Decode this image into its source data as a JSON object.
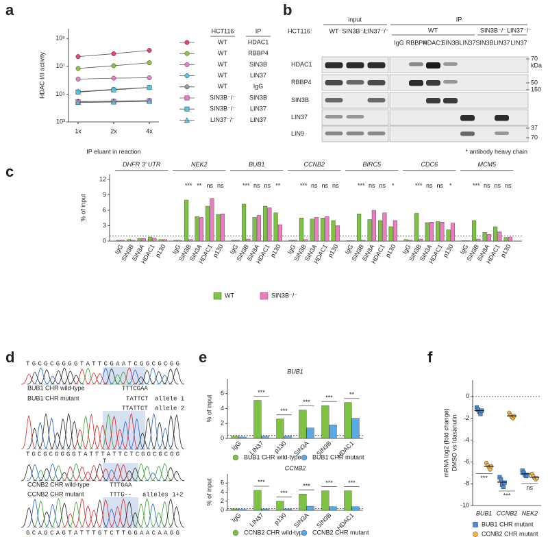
{
  "panel_labels": [
    "a",
    "b",
    "c",
    "d",
    "e",
    "f"
  ],
  "chart_data": [
    {
      "type": "line",
      "y_label": "HDAC I/II activity",
      "x_label": "IP eluant in reaction",
      "categories": [
        "1x",
        "2x",
        "4x"
      ],
      "log_scale": true,
      "ylim": [
        1000,
        5000000000
      ],
      "yticks": [
        {
          "value": 1000,
          "label": "10³"
        },
        {
          "value": 100000,
          "label": "10⁵"
        },
        {
          "value": 10000000,
          "label": "10⁷"
        },
        {
          "value": 1000000000,
          "label": "10⁹"
        }
      ],
      "legend_headers": [
        "HCT116",
        "IP"
      ],
      "series": [
        {
          "name": "WT",
          "ip": "HDAC1",
          "color": "#e8407a",
          "marker": "circle",
          "values": [
            50000000,
            80000000,
            140000000
          ]
        },
        {
          "name": "WT",
          "ip": "RBBP4",
          "color": "#8cc63f",
          "marker": "circle",
          "values": [
            7000000,
            11000000,
            18000000
          ]
        },
        {
          "name": "WT",
          "ip": "SIN3B",
          "color": "#e67fd0",
          "marker": "circle",
          "values": [
            1200000,
            1400000,
            1500000
          ]
        },
        {
          "name": "WT",
          "ip": "LIN37",
          "color": "#4fc3e8",
          "marker": "circle",
          "values": [
            150000,
            220000,
            300000
          ]
        },
        {
          "name": "WT",
          "ip": "IgG",
          "color": "#999999",
          "marker": "circle",
          "values": [
            30000,
            32000,
            35000
          ]
        },
        {
          "name": "SIN3B⁻/⁻",
          "ip": "SIN3B",
          "color": "#e67fd0",
          "marker": "square",
          "values": [
            28000,
            30000,
            33000
          ]
        },
        {
          "name": "SIN3B⁻/⁻",
          "ip": "LIN37",
          "color": "#4fc3e8",
          "marker": "square",
          "values": [
            140000,
            200000,
            300000
          ]
        },
        {
          "name": "LIN37⁻/⁻",
          "ip": "LIN37",
          "color": "#4fc3e8",
          "marker": "triangle",
          "values": [
            25000,
            27000,
            30000
          ]
        }
      ]
    },
    {
      "type": "bar",
      "y_label": "% of input",
      "ylim": [
        0,
        13
      ],
      "yticks": [
        0,
        3,
        6,
        9,
        12
      ],
      "ref_line": 1,
      "series": [
        {
          "name": "WT",
          "color": "#7dc243"
        },
        {
          "name": "SIN3B⁻/⁻",
          "color": "#f07cc0"
        }
      ],
      "groups": [
        {
          "title": "DHFR 3' UTR",
          "categories": [
            "IgG",
            "SIN3B",
            "SIN3A",
            "HDAC1",
            "p130"
          ],
          "values": [
            [
              0.2,
              0.3,
              0.5,
              0.8,
              0.3
            ],
            [
              0.2,
              0.2,
              0.5,
              0.6,
              0.3
            ]
          ]
        },
        {
          "title": "NEK2",
          "categories": [
            "IgG",
            "SIN3B",
            "SIN3A",
            "HDAC1",
            "p130"
          ],
          "values": [
            [
              0.2,
              8.0,
              4.8,
              6.8,
              5.2
            ],
            [
              0.1,
              0.3,
              4.6,
              8.3,
              5.3
            ]
          ],
          "annotations": [
            null,
            "***",
            "**",
            "ns",
            "ns"
          ]
        },
        {
          "title": "BUB1",
          "categories": [
            "IgG",
            "SIN3B",
            "SIN3A",
            "HDAC1",
            "p130"
          ],
          "values": [
            [
              0.2,
              7.2,
              4.6,
              6.8,
              5.5
            ],
            [
              0.2,
              0.4,
              5.0,
              6.5,
              3.2
            ]
          ],
          "annotations": [
            null,
            "***",
            "ns",
            "ns",
            "**"
          ]
        },
        {
          "title": "CCNB2",
          "categories": [
            "IgG",
            "SIN3B",
            "SIN3A",
            "HDAC1",
            "p130"
          ],
          "values": [
            [
              0.2,
              4.5,
              4.3,
              4.5,
              4.0
            ],
            [
              0.2,
              0.3,
              4.6,
              4.8,
              3.0
            ]
          ],
          "annotations": [
            null,
            "***",
            "ns",
            "ns",
            "ns"
          ]
        },
        {
          "title": "BIRC5",
          "categories": [
            "IgG",
            "SIN3B",
            "SIN3A",
            "HDAC1",
            "p130"
          ],
          "values": [
            [
              0.1,
              5.3,
              4.2,
              4.0,
              2.8
            ],
            [
              0.1,
              0.2,
              6.0,
              5.5,
              4.0
            ]
          ],
          "annotations": [
            null,
            "***",
            "ns",
            "ns",
            "*"
          ]
        },
        {
          "title": "CDC6",
          "categories": [
            "IgG",
            "SIN3B",
            "SIN3A",
            "HDAC1",
            "p130"
          ],
          "values": [
            [
              0.3,
              5.4,
              3.6,
              3.8,
              2.2
            ],
            [
              0.2,
              0.4,
              3.7,
              3.7,
              3.5
            ]
          ],
          "annotations": [
            null,
            "***",
            "ns",
            "ns",
            "*"
          ]
        },
        {
          "title": "MCM5",
          "categories": [
            "IgG",
            "SIN3B",
            "SIN3A",
            "HDAC1",
            "p130"
          ],
          "values": [
            [
              0.1,
              4.0,
              1.7,
              2.8,
              0.7
            ],
            [
              0.1,
              0.4,
              1.3,
              1.8,
              0.8
            ]
          ],
          "annotations": [
            null,
            "***",
            "ns",
            "ns",
            "ns"
          ]
        }
      ]
    },
    {
      "type": "bar",
      "title": "BUB1",
      "y_label": "% of input",
      "ylim": [
        0,
        8
      ],
      "yticks": [
        0,
        2,
        4,
        6
      ],
      "ref_line": 0.4,
      "categories": [
        "IgG",
        "LIN37",
        "p130",
        "SIN3A",
        "SIN3B",
        "HDAC1"
      ],
      "series": [
        {
          "name": "BUB1 CHR wild-type",
          "color": "#7dc243",
          "values": [
            0.3,
            5.1,
            2.6,
            3.8,
            4.4,
            4.8
          ]
        },
        {
          "name": "BUB1 CHR mutant",
          "color": "#5aa9e6",
          "values": [
            0.2,
            0.3,
            0.3,
            1.4,
            1.8,
            2.7
          ]
        }
      ],
      "annotations": [
        null,
        "***",
        "***",
        "***",
        "***",
        "**"
      ]
    },
    {
      "type": "bar",
      "title": "CCNB2",
      "y_label": "% of input",
      "ylim": [
        0,
        8
      ],
      "yticks": [
        0,
        2,
        4,
        6
      ],
      "ref_line": 0.4,
      "categories": [
        "IgG",
        "LIN37",
        "p130",
        "SIN3A",
        "SIN3B",
        "HDAC1"
      ],
      "series": [
        {
          "name": "CCNB2 CHR wild-type",
          "color": "#7dc243",
          "values": [
            0.3,
            4.4,
            2.0,
            3.6,
            4.3,
            4.3
          ]
        },
        {
          "name": "CCNB2 CHR mutant",
          "color": "#5aa9e6",
          "values": [
            0.2,
            0.3,
            0.3,
            0.9,
            0.8,
            0.8
          ]
        }
      ],
      "annotations": [
        null,
        "***",
        "***",
        "***",
        "***",
        "***"
      ]
    },
    {
      "type": "dot",
      "y_label": [
        "mRNA log2 (fold change)",
        "DMSO vs Idasanutin"
      ],
      "ylim": [
        -10,
        1.5
      ],
      "yticks": [
        -10,
        -8,
        -6,
        -4,
        -2,
        0
      ],
      "ref_line": 0,
      "categories": [
        "BUB1",
        "CCNB2",
        "NEK2"
      ],
      "series": [
        {
          "name": "BUB1 CHR mutant",
          "color": "#4a90d9",
          "marker": "square",
          "values": [
            -1.3,
            -7.86,
            -7.1
          ],
          "points": [
            [
              -1.0,
              -1.2,
              -1.4,
              -1.6,
              -1.3
            ],
            [
              -7.4,
              -7.6,
              -8.1,
              -8.3,
              -7.9
            ],
            [
              -6.8,
              -7.0,
              -7.2,
              -7.3,
              -7.2
            ]
          ]
        },
        {
          "name": "CCNB2 CHR mutant",
          "color": "#f5b342",
          "marker": "circle",
          "values": [
            -6.4,
            -1.78,
            -7.4
          ],
          "points": [
            [
              -6.1,
              -6.3,
              -6.5,
              -6.7,
              -6.4
            ],
            [
              -1.5,
              -1.7,
              -1.9,
              -2.0,
              -1.8
            ],
            [
              -7.1,
              -7.3,
              -7.5,
              -7.6,
              -7.5
            ]
          ]
        }
      ],
      "annotations": [
        "***",
        "***",
        "ns"
      ]
    }
  ],
  "blot": {
    "header_input": "input",
    "header_ip": "IP",
    "cell_line_label": "HCT116:",
    "input_lanes": [
      "WT",
      "SIN3B⁻/⁻",
      "LIN37⁻/⁻"
    ],
    "ip_cell_lines": [
      "WT",
      "SIN3B⁻/⁻",
      "LIN37⁻/⁻"
    ],
    "ip_lanes": [
      "IgG",
      "RBBP4",
      "HDAC1",
      "SIN3B",
      "LIN37",
      "SIN3B",
      "LIN37",
      "LIN37"
    ],
    "rows": [
      "HDAC1",
      "RBBP4",
      "SIN3B",
      "LIN37",
      "LIN9"
    ],
    "markers": [
      "70",
      "kDa",
      "50",
      "150",
      "37",
      "70"
    ],
    "star": "*",
    "footnote": "* antibody heavy chain"
  },
  "sequences": {
    "bub1_reference": "TGCGCGGGGTATTCGAATCGGCGCGG",
    "bub1_wt_label": "BUB1 CHR wild-type",
    "bub1_wt_seq": "TTTCGAA",
    "bub1_mut_label": "BUB1 CHR mutant",
    "bub1_allele1_seq": "TATTCT",
    "allele1": "allele 1",
    "bub1_allele2_seq": "TTATTCT",
    "allele2": "allele 2",
    "bub1_mutant": "TGCGCGGGGTATTTATTCTCGGCGCGG",
    "bub1_mutant_variant": "T",
    "ccnb2_wt_label": "CCNB2 CHR wild-type",
    "ccnb2_wt_seq": "TTTGAA",
    "ccnb2_mut_label": "CCNB2 CHR mutant",
    "ccnb2_mut_seq": "TTTG--",
    "alleles12": "alleles 1+2",
    "ccnb2_mutant": "GCAGCAGTATTTGTCTTGGAACAAGG"
  }
}
